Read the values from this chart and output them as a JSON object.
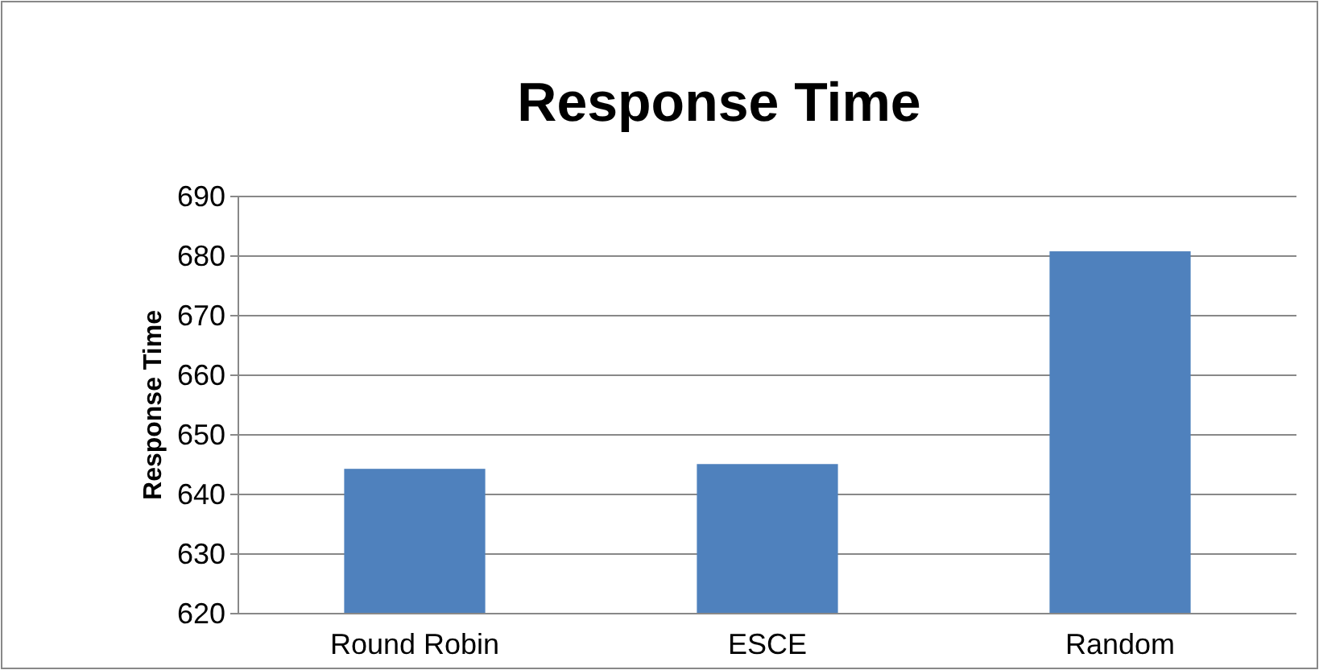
{
  "chart_data": {
    "type": "bar",
    "title": "Response Time",
    "ylabel": "Response Time",
    "categories": [
      "Round Robin",
      "ESCE",
      "Random"
    ],
    "values": [
      644.3,
      645.1,
      680.8
    ],
    "color": "#4f81bd",
    "ylim": [
      620,
      690
    ],
    "yticks": [
      620,
      630,
      640,
      650,
      660,
      670,
      680,
      690
    ],
    "grid": "y"
  }
}
